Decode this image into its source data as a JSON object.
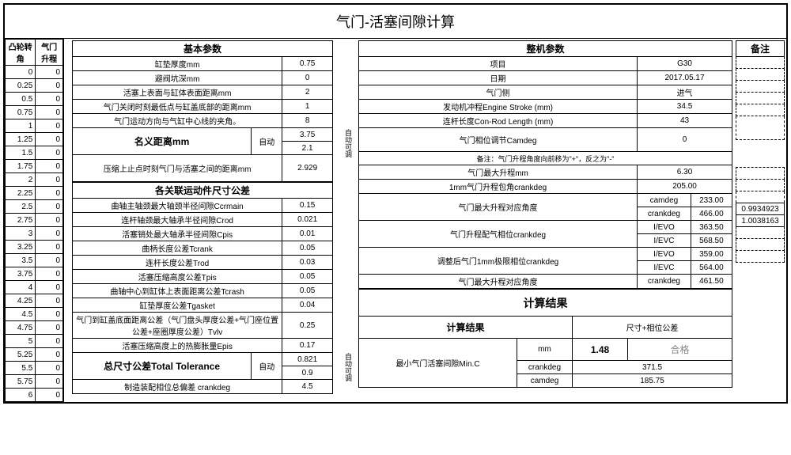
{
  "title": "气门-活塞间隙计算",
  "left_headers": [
    "凸轮转角",
    "气门升程"
  ],
  "left_rows": [
    [
      "0",
      "0"
    ],
    [
      "0.25",
      "0"
    ],
    [
      "0.5",
      "0"
    ],
    [
      "0.75",
      "0"
    ],
    [
      "1",
      "0"
    ],
    [
      "1.25",
      "0"
    ],
    [
      "1.5",
      "0"
    ],
    [
      "1.75",
      "0"
    ],
    [
      "2",
      "0"
    ],
    [
      "2.25",
      "0"
    ],
    [
      "2.5",
      "0"
    ],
    [
      "2.75",
      "0"
    ],
    [
      "3",
      "0"
    ],
    [
      "3.25",
      "0"
    ],
    [
      "3.5",
      "0"
    ],
    [
      "3.75",
      "0"
    ],
    [
      "4",
      "0"
    ],
    [
      "4.25",
      "0"
    ],
    [
      "4.5",
      "0"
    ],
    [
      "4.75",
      "0"
    ],
    [
      "5",
      "0"
    ],
    [
      "5.25",
      "0"
    ],
    [
      "5.5",
      "0"
    ],
    [
      "5.75",
      "0"
    ],
    [
      "6",
      "0"
    ]
  ],
  "basic": {
    "header": "基本参数",
    "rows": [
      {
        "l": "缸垫厚度mm",
        "v": "0.75"
      },
      {
        "l": "避阀坑深mm",
        "v": "0"
      },
      {
        "l": "活塞上表面与缸体表面距离mm",
        "v": "2"
      },
      {
        "l": "气门关闭时刻最低点与缸盖底部的距离mm",
        "v": "1"
      },
      {
        "l": "气门运动方向与气缸中心线的夹角。",
        "v": "8"
      }
    ],
    "nominal_l": "名义距离mm",
    "nominal_auto": "自动",
    "nominal_v1": "3.75",
    "nominal_v2": "2.1",
    "tdc_l": "压缩上止点时刻气门与活塞之间的距离mm",
    "tdc_v": "2.929"
  },
  "tol": {
    "header": "各关联运动件尺寸公差",
    "rows": [
      {
        "l": "曲轴主轴颈最大轴颈半径间隙Ccrmain",
        "v": "0.15"
      },
      {
        "l": "连杆轴颈最大轴承半径间隙Crod",
        "v": "0.021"
      },
      {
        "l": "活塞销处最大轴承半径间隙Cpis",
        "v": "0.01"
      },
      {
        "l": "曲柄长度公差Tcrank",
        "v": "0.05"
      },
      {
        "l": "连杆长度公差Trod",
        "v": "0.03"
      },
      {
        "l": "活塞压缩高度公差Tpis",
        "v": "0.05"
      },
      {
        "l": "曲轴中心到缸体上表面距离公差Tcrash",
        "v": "0.05"
      },
      {
        "l": "缸垫厚度公差Tgasket",
        "v": "0.04"
      },
      {
        "l": "气门到缸盖底面距离公差（气门盘头厚度公差+气门座位置公差+座圈厚度公差）Tvlv",
        "v": "0.25"
      },
      {
        "l": "活塞压缩高度上的热膨胀量Epis",
        "v": "0.17"
      }
    ],
    "total_l": "总尺寸公差Total Tolerance",
    "total_auto": "自动",
    "total_v1": "0.821",
    "total_v2": "0.9",
    "crank_l": "制造装配相位总偏差 crankdeg",
    "crank_v": "4.5"
  },
  "side_labels": {
    "a": "自动可调",
    "b": "自动可调"
  },
  "machine": {
    "header": "整机参数",
    "remark_header": "备注",
    "rows": [
      {
        "l": "项目",
        "v": "G30"
      },
      {
        "l": "日期",
        "v": "2017.05.17"
      },
      {
        "l": "气门侧",
        "v": "进气"
      },
      {
        "l": "发动机冲程Engine Stroke (mm)",
        "v": "34.5"
      },
      {
        "l": "连杆长度Con-Rod Length (mm)",
        "v": "43"
      }
    ],
    "camdeg_l": "气门相位调节Camdeg",
    "camdeg_v": "0",
    "note": "备注：气门升程角度向前移为\"+\"，反之为\"-\"",
    "maxlift_l": "气门最大升程mm",
    "maxlift_v": "6.30",
    "1mm_l": "1mm气门升程包角crankdeg",
    "1mm_v": "205.00",
    "maxang_l": "气门最大升程对应角度",
    "maxang_r1": {
      "a": "camdeg",
      "b": "233.00"
    },
    "maxang_r2": {
      "a": "crankdeg",
      "b": "466.00"
    },
    "phase_l": "气门升程配气相位crankdeg",
    "phase_r1": {
      "a": "I/EVO",
      "b": "363.50",
      "c": "0.9934923"
    },
    "phase_r2": {
      "a": "I/EVC",
      "b": "568.50",
      "c": "1.0038163"
    },
    "adj_l": "调整后气门1mm极限相位crankdeg",
    "adj_r1": {
      "a": "I/EVO",
      "b": "359.00"
    },
    "adj_r2": {
      "a": "I/EVC",
      "b": "564.00"
    },
    "maxang2_l": "气门最大升程对应角度",
    "maxang2_r": {
      "a": "crankdeg",
      "b": "461.50"
    }
  },
  "result": {
    "header": "计算结果",
    "sub_header": "计算结果",
    "size_tol": "尺寸+相位公差",
    "min_l": "最小气门活塞间隙Min.C",
    "mm": "mm",
    "mm_v": "1.48",
    "pass": "合格",
    "crank": "crankdeg",
    "crank_v": "371.5",
    "cam": "camdeg",
    "cam_v": "185.75"
  }
}
